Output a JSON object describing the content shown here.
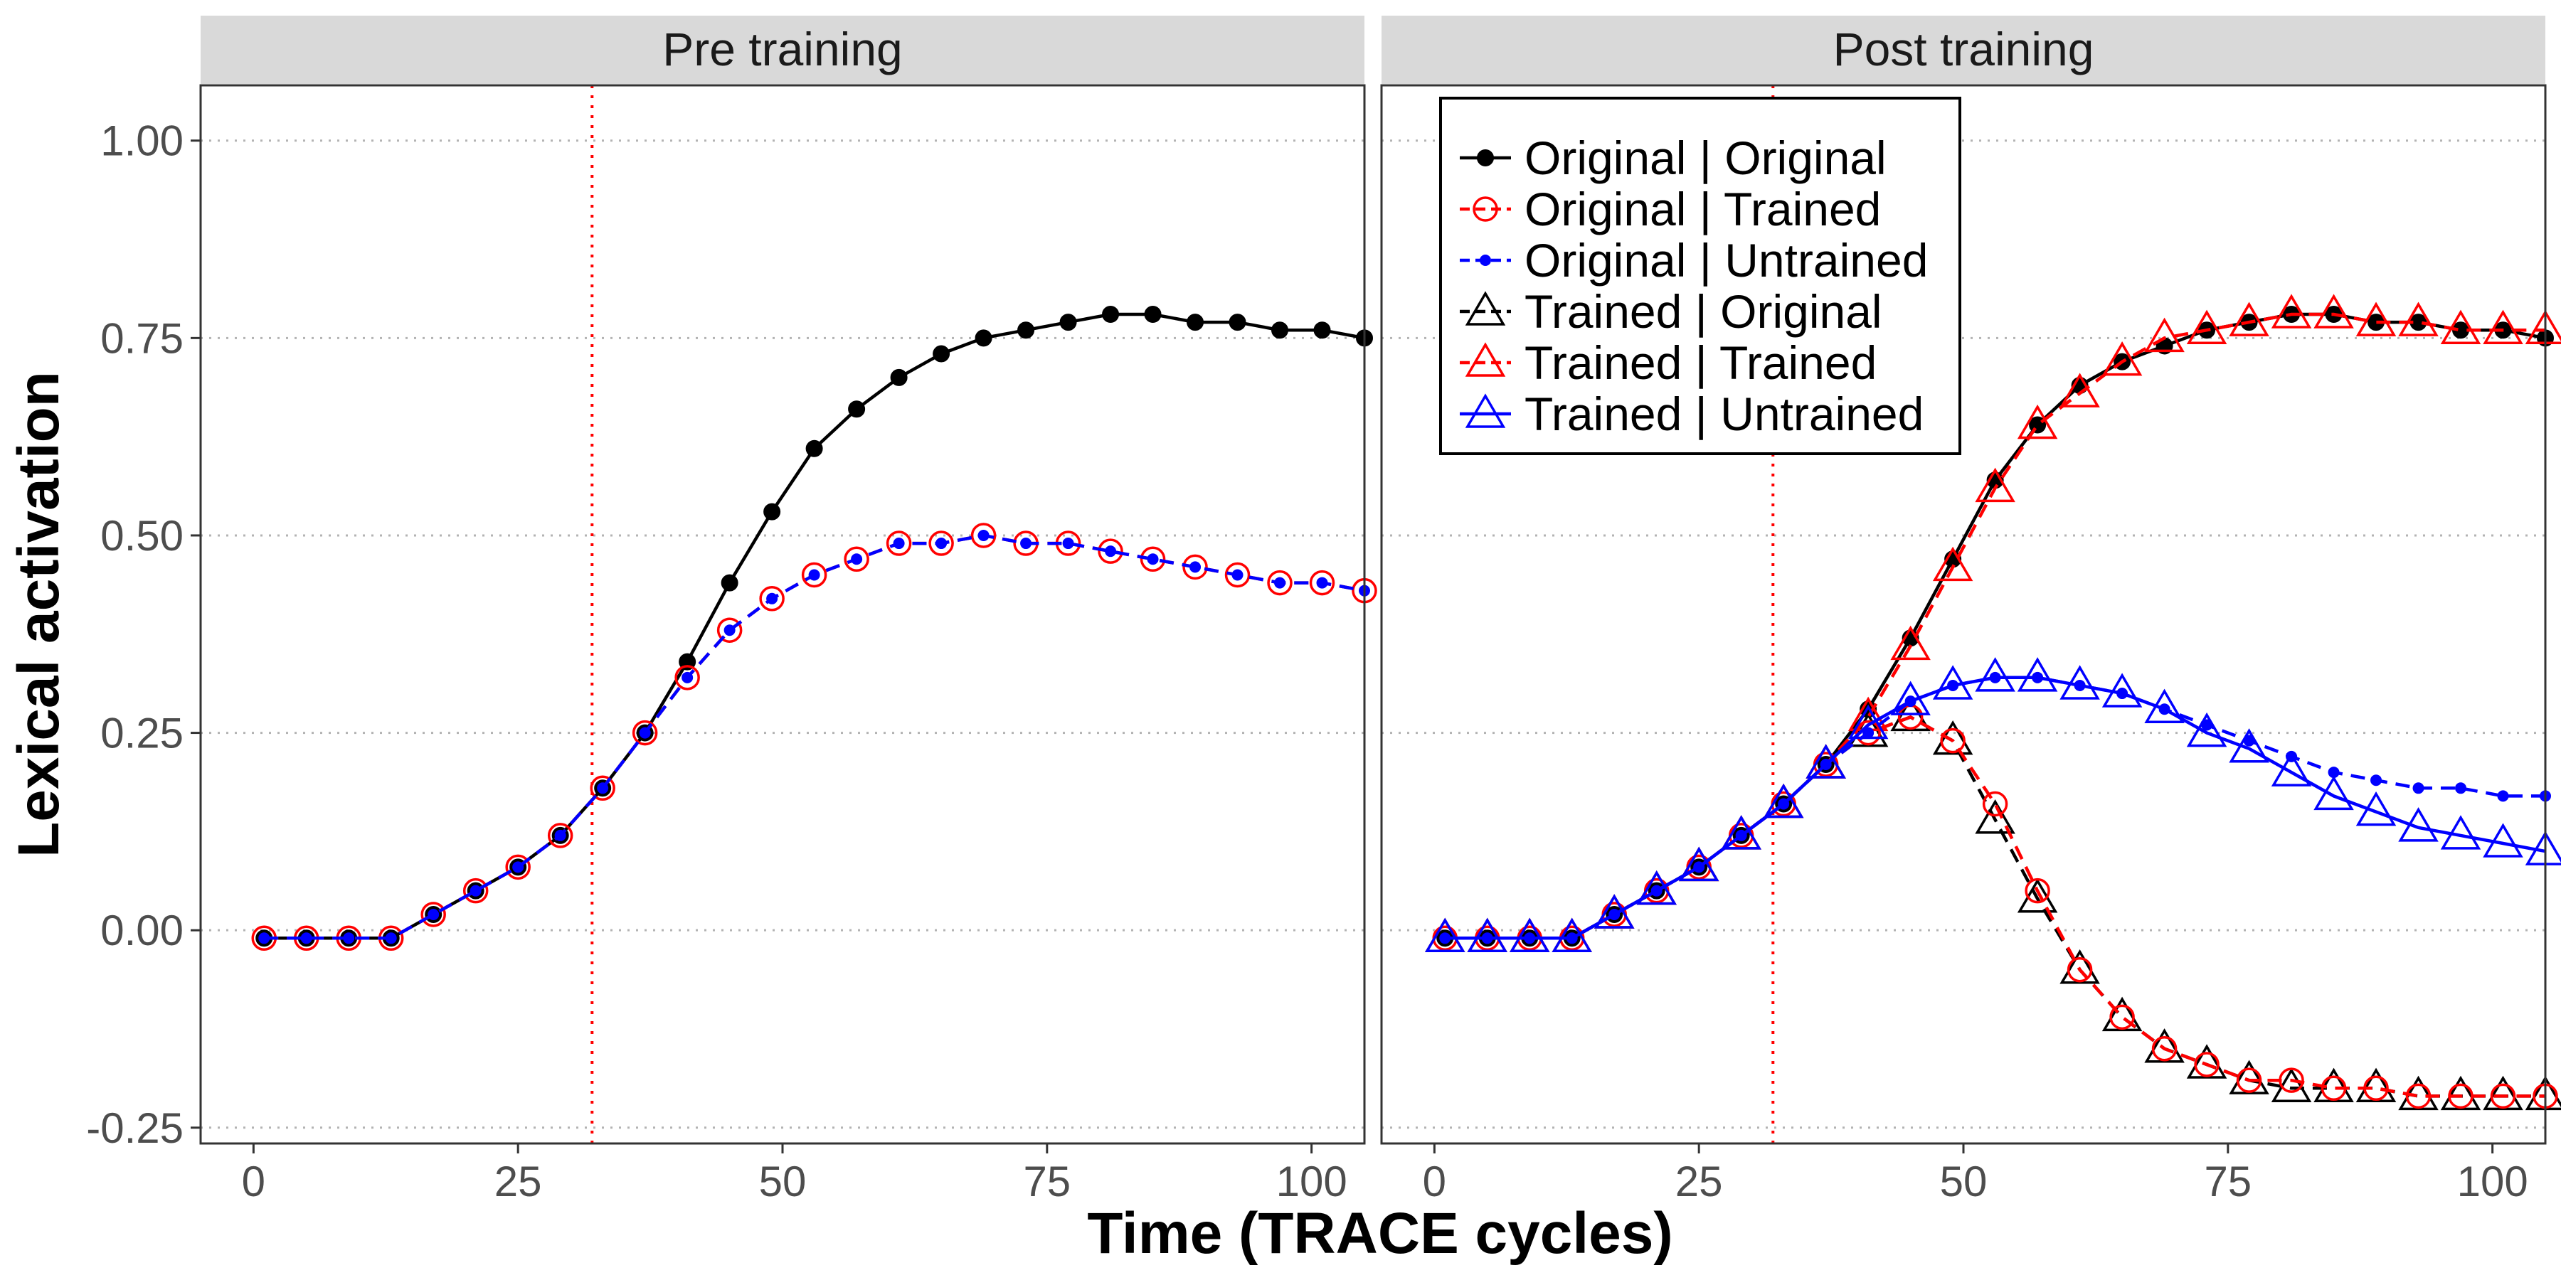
{
  "chart_data": {
    "type": "line",
    "xlabel": "Time (TRACE cycles)",
    "ylabel": "Lexical activation",
    "xlim": [
      -5,
      105
    ],
    "ylim": [
      -0.27,
      1.07
    ],
    "x_ticks": [
      0,
      25,
      50,
      75,
      100
    ],
    "y_ticks": [
      -0.25,
      0.0,
      0.25,
      0.5,
      0.75,
      1.0
    ],
    "y_tick_labels": [
      "-0.25",
      "0.00",
      "0.25",
      "0.50",
      "0.75",
      "1.00"
    ],
    "x_tick_labels": [
      "0",
      "25",
      "50",
      "75",
      "100"
    ],
    "vline_x": 32,
    "grid": "horizontal dotted",
    "legend_position": "top-left (inside Post training panel)",
    "colors": {
      "black": "#000000",
      "red": "#ff0000",
      "blue": "#0000ff",
      "strip": "#d9d9d9",
      "grid": "#b3b3b3"
    },
    "x": [
      1,
      5,
      9,
      13,
      17,
      21,
      25,
      29,
      33,
      37,
      41,
      45,
      49,
      53,
      57,
      61,
      65,
      69,
      73,
      77,
      81,
      85,
      89,
      93,
      97,
      101,
      105
    ],
    "series_styles": [
      {
        "key": "orig_orig",
        "name": "Original | Original",
        "color": "#000000",
        "dash": "solid",
        "marker": "filled-circle"
      },
      {
        "key": "orig_trained",
        "name": "Original | Trained",
        "color": "#ff0000",
        "dash": "dashed",
        "marker": "open-circle"
      },
      {
        "key": "orig_untrained",
        "name": "Original | Untrained",
        "color": "#0000ff",
        "dash": "dashed",
        "marker": "small-dot"
      },
      {
        "key": "trained_orig",
        "name": "Trained | Original",
        "color": "#000000",
        "dash": "dashed",
        "marker": "open-triangle"
      },
      {
        "key": "trained_trained",
        "name": "Trained | Trained",
        "color": "#ff0000",
        "dash": "dashed",
        "marker": "open-triangle"
      },
      {
        "key": "trained_untrained",
        "name": "Trained | Untrained",
        "color": "#0000ff",
        "dash": "solid",
        "marker": "open-triangle"
      }
    ],
    "panels": [
      {
        "title": "Pre training",
        "series": [
          {
            "key": "orig_orig",
            "values": [
              -0.01,
              -0.01,
              -0.01,
              -0.01,
              0.02,
              0.05,
              0.08,
              0.12,
              0.18,
              0.25,
              0.34,
              0.44,
              0.53,
              0.61,
              0.66,
              0.7,
              0.73,
              0.75,
              0.76,
              0.77,
              0.78,
              0.78,
              0.77,
              0.77,
              0.76,
              0.76,
              0.75
            ]
          },
          {
            "key": "orig_trained",
            "values": [
              -0.01,
              -0.01,
              -0.01,
              -0.01,
              0.02,
              0.05,
              0.08,
              0.12,
              0.18,
              0.25,
              0.32,
              0.38,
              0.42,
              0.45,
              0.47,
              0.49,
              0.49,
              0.5,
              0.49,
              0.49,
              0.48,
              0.47,
              0.46,
              0.45,
              0.44,
              0.44,
              0.43
            ]
          },
          {
            "key": "orig_untrained",
            "values": [
              -0.01,
              -0.01,
              -0.01,
              -0.01,
              0.02,
              0.05,
              0.08,
              0.12,
              0.18,
              0.25,
              0.32,
              0.38,
              0.42,
              0.45,
              0.47,
              0.49,
              0.49,
              0.5,
              0.49,
              0.49,
              0.48,
              0.47,
              0.46,
              0.45,
              0.44,
              0.44,
              0.43
            ]
          }
        ]
      },
      {
        "title": "Post training",
        "series": [
          {
            "key": "orig_orig",
            "values": [
              -0.01,
              -0.01,
              -0.01,
              -0.01,
              0.02,
              0.05,
              0.08,
              0.12,
              0.16,
              0.21,
              0.28,
              0.37,
              0.47,
              0.57,
              0.64,
              0.69,
              0.72,
              0.74,
              0.76,
              0.77,
              0.78,
              0.78,
              0.77,
              0.77,
              0.76,
              0.76,
              0.75
            ]
          },
          {
            "key": "orig_trained",
            "values": [
              -0.01,
              -0.01,
              -0.01,
              -0.01,
              0.02,
              0.05,
              0.08,
              0.12,
              0.16,
              0.21,
              0.25,
              0.27,
              0.24,
              0.16,
              0.05,
              -0.05,
              -0.11,
              -0.15,
              -0.17,
              -0.19,
              -0.19,
              -0.2,
              -0.2,
              -0.21,
              -0.21,
              -0.21,
              -0.21
            ]
          },
          {
            "key": "orig_untrained",
            "values": [
              -0.01,
              -0.01,
              -0.01,
              -0.01,
              0.02,
              0.05,
              0.08,
              0.12,
              0.16,
              0.21,
              0.25,
              0.29,
              0.31,
              0.32,
              0.32,
              0.31,
              0.3,
              0.28,
              0.26,
              0.24,
              0.22,
              0.2,
              0.19,
              0.18,
              0.18,
              0.17,
              0.17
            ]
          },
          {
            "key": "trained_orig",
            "values": [
              -0.01,
              -0.01,
              -0.01,
              -0.01,
              0.02,
              0.05,
              0.08,
              0.12,
              0.16,
              0.21,
              0.25,
              0.27,
              0.24,
              0.14,
              0.04,
              -0.05,
              -0.11,
              -0.15,
              -0.17,
              -0.19,
              -0.2,
              -0.2,
              -0.2,
              -0.21,
              -0.21,
              -0.21,
              -0.21
            ]
          },
          {
            "key": "trained_trained",
            "values": [
              -0.01,
              -0.01,
              -0.01,
              -0.01,
              0.02,
              0.05,
              0.08,
              0.12,
              0.16,
              0.21,
              0.27,
              0.36,
              0.46,
              0.56,
              0.64,
              0.68,
              0.72,
              0.75,
              0.76,
              0.77,
              0.78,
              0.78,
              0.77,
              0.77,
              0.76,
              0.76,
              0.76
            ]
          },
          {
            "key": "trained_untrained",
            "values": [
              -0.01,
              -0.01,
              -0.01,
              -0.01,
              0.02,
              0.05,
              0.08,
              0.12,
              0.16,
              0.21,
              0.26,
              0.29,
              0.31,
              0.32,
              0.32,
              0.31,
              0.3,
              0.28,
              0.25,
              0.23,
              0.2,
              0.17,
              0.15,
              0.13,
              0.12,
              0.11,
              0.1
            ]
          }
        ]
      }
    ]
  }
}
